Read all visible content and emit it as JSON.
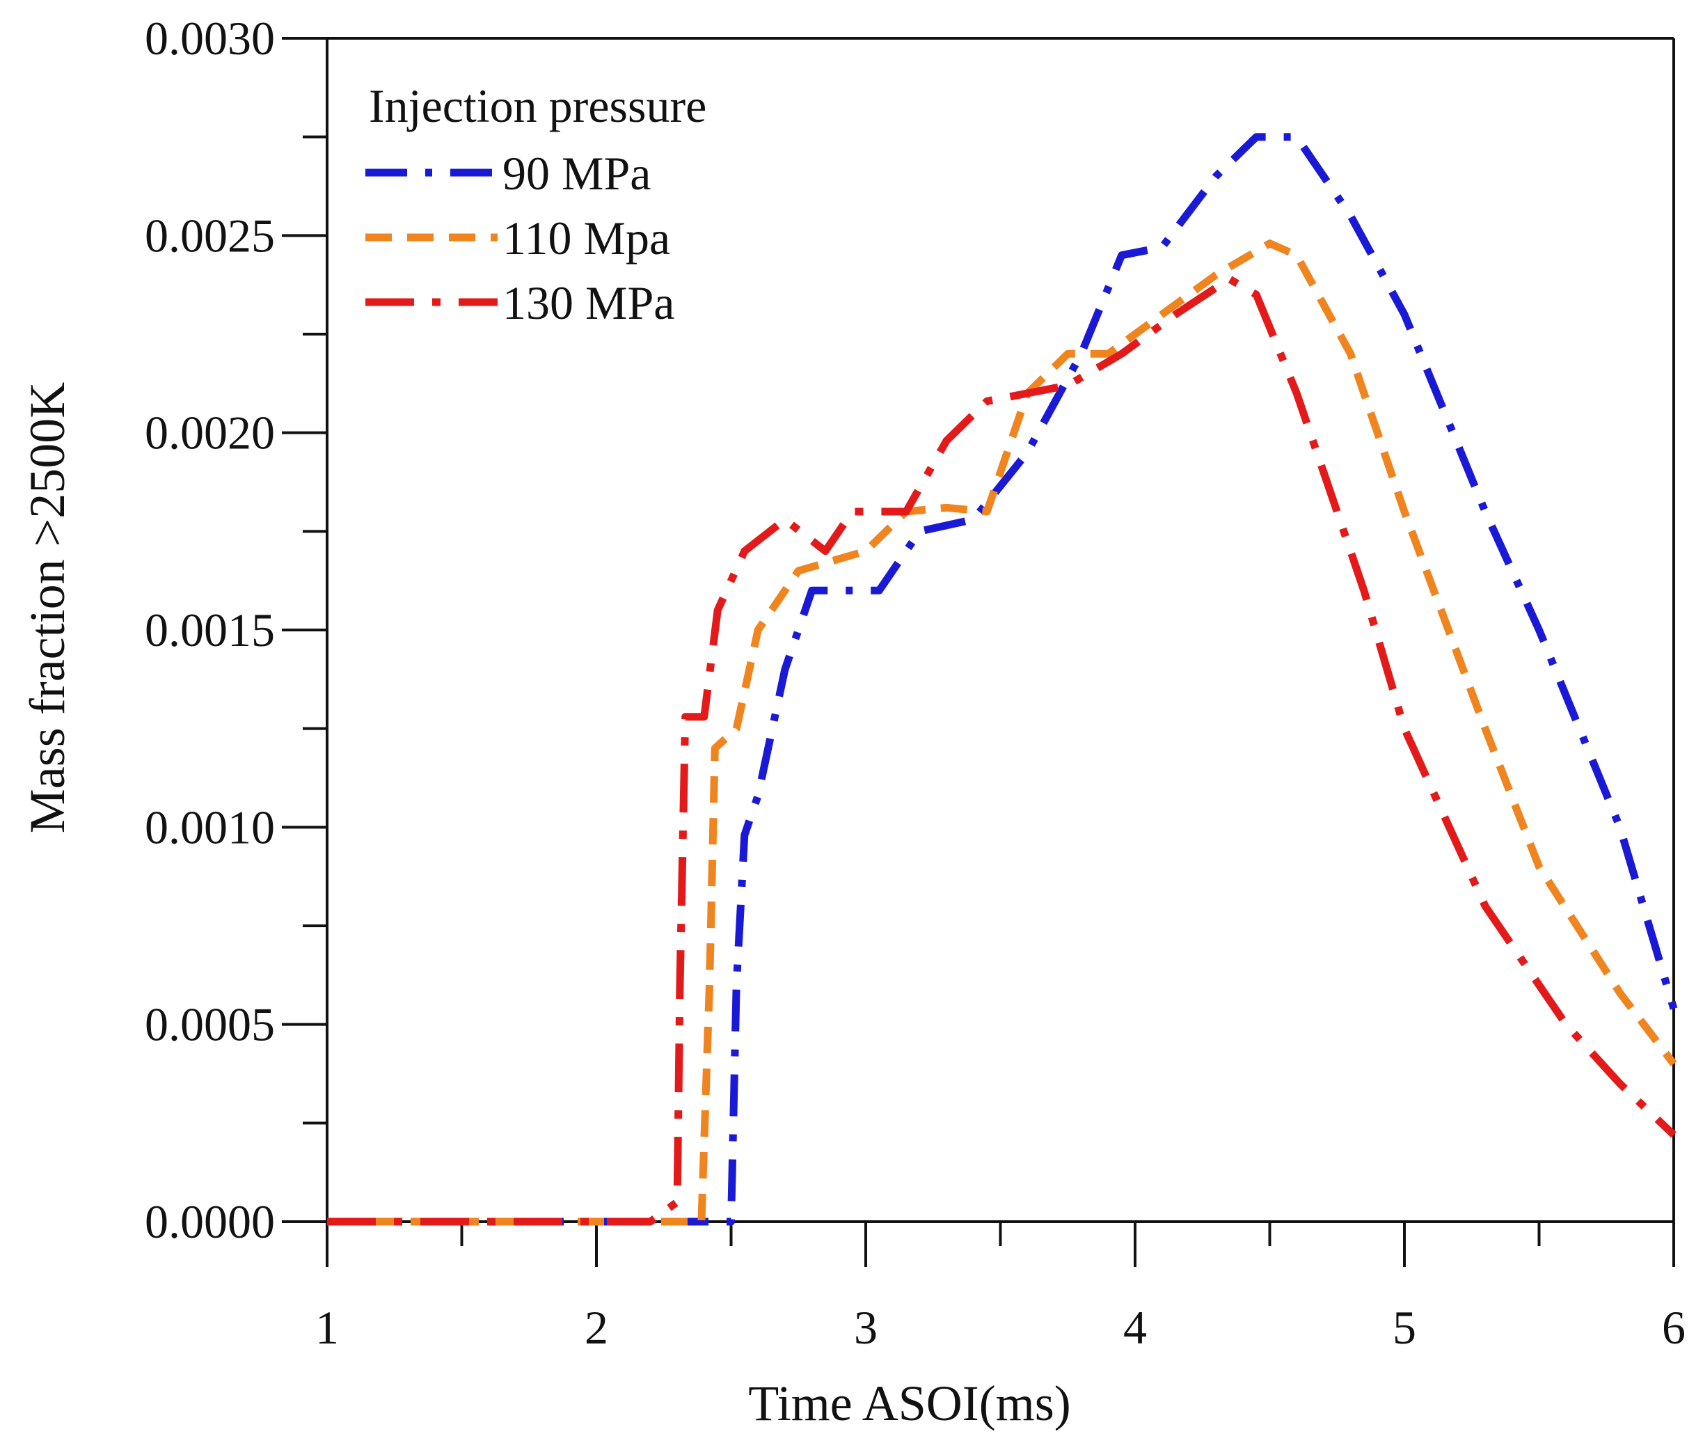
{
  "chart_data": {
    "type": "line",
    "title": "",
    "xlabel": "Time ASOI(ms)",
    "ylabel": "Mass fraction  >2500K",
    "xlim": [
      1,
      6
    ],
    "ylim": [
      0,
      0.003
    ],
    "x_ticks": [
      1,
      2,
      3,
      4,
      5,
      6
    ],
    "x_tick_labels": [
      "1",
      "2",
      "3",
      "4",
      "5",
      "6"
    ],
    "y_ticks": [
      0,
      0.0005,
      0.001,
      0.0015,
      0.002,
      0.0025,
      0.003
    ],
    "y_tick_labels": [
      "0.0000",
      "0.0005",
      "0.0010",
      "0.0015",
      "0.0020",
      "0.0025",
      "0.0030"
    ],
    "grid": false,
    "legend": {
      "title": "Injection pressure",
      "position": "top-left"
    },
    "series": [
      {
        "name": "90 MPa",
        "color": "#1a1ad6",
        "dash": "dash-dot",
        "points": [
          [
            1.0,
            0.0
          ],
          [
            2.0,
            0.0
          ],
          [
            2.5,
            0.0
          ],
          [
            2.52,
            0.0006
          ],
          [
            2.55,
            0.00098
          ],
          [
            2.6,
            0.00108
          ],
          [
            2.7,
            0.0014
          ],
          [
            2.8,
            0.0016
          ],
          [
            2.95,
            0.0016
          ],
          [
            3.05,
            0.0016
          ],
          [
            3.2,
            0.00175
          ],
          [
            3.4,
            0.00178
          ],
          [
            3.6,
            0.00195
          ],
          [
            3.8,
            0.0022
          ],
          [
            3.95,
            0.00245
          ],
          [
            4.1,
            0.00247
          ],
          [
            4.3,
            0.00265
          ],
          [
            4.45,
            0.00275
          ],
          [
            4.6,
            0.00275
          ],
          [
            4.8,
            0.00255
          ],
          [
            5.0,
            0.0023
          ],
          [
            5.3,
            0.0018
          ],
          [
            5.5,
            0.0015
          ],
          [
            5.8,
            0.001
          ],
          [
            6.0,
            0.00054
          ]
        ]
      },
      {
        "name": "110 Mpa",
        "color": "#f0841e",
        "dash": "dash",
        "points": [
          [
            1.0,
            0.0
          ],
          [
            2.0,
            0.0
          ],
          [
            2.39,
            0.0
          ],
          [
            2.42,
            0.0006
          ],
          [
            2.44,
            0.0012
          ],
          [
            2.52,
            0.00125
          ],
          [
            2.6,
            0.0015
          ],
          [
            2.75,
            0.00165
          ],
          [
            2.85,
            0.00167
          ],
          [
            3.0,
            0.0017
          ],
          [
            3.15,
            0.0018
          ],
          [
            3.3,
            0.00181
          ],
          [
            3.45,
            0.0018
          ],
          [
            3.6,
            0.0021
          ],
          [
            3.75,
            0.0022
          ],
          [
            3.9,
            0.0022
          ],
          [
            4.1,
            0.0023
          ],
          [
            4.3,
            0.0024
          ],
          [
            4.5,
            0.00248
          ],
          [
            4.6,
            0.00245
          ],
          [
            4.8,
            0.0022
          ],
          [
            5.0,
            0.0018
          ],
          [
            5.3,
            0.00125
          ],
          [
            5.5,
            0.0009
          ],
          [
            5.8,
            0.00058
          ],
          [
            6.0,
            0.0004
          ]
        ]
      },
      {
        "name": "130 MPa",
        "color": "#e31a1a",
        "dash": "long-dash-dot",
        "points": [
          [
            1.0,
            0.0
          ],
          [
            2.0,
            0.0
          ],
          [
            2.2,
            0.0
          ],
          [
            2.3,
            5e-05
          ],
          [
            2.31,
            0.0006
          ],
          [
            2.33,
            0.00128
          ],
          [
            2.4,
            0.00128
          ],
          [
            2.45,
            0.00155
          ],
          [
            2.55,
            0.0017
          ],
          [
            2.7,
            0.00178
          ],
          [
            2.85,
            0.0017
          ],
          [
            2.95,
            0.0018
          ],
          [
            3.15,
            0.0018
          ],
          [
            3.3,
            0.00198
          ],
          [
            3.45,
            0.00208
          ],
          [
            3.6,
            0.0021
          ],
          [
            3.75,
            0.00212
          ],
          [
            3.95,
            0.0022
          ],
          [
            4.15,
            0.0023
          ],
          [
            4.35,
            0.00239
          ],
          [
            4.45,
            0.00235
          ],
          [
            4.6,
            0.0021
          ],
          [
            4.85,
            0.0016
          ],
          [
            5.0,
            0.00125
          ],
          [
            5.3,
            0.0008
          ],
          [
            5.6,
            0.0005
          ],
          [
            5.8,
            0.00035
          ],
          [
            6.0,
            0.00022
          ]
        ]
      }
    ]
  }
}
